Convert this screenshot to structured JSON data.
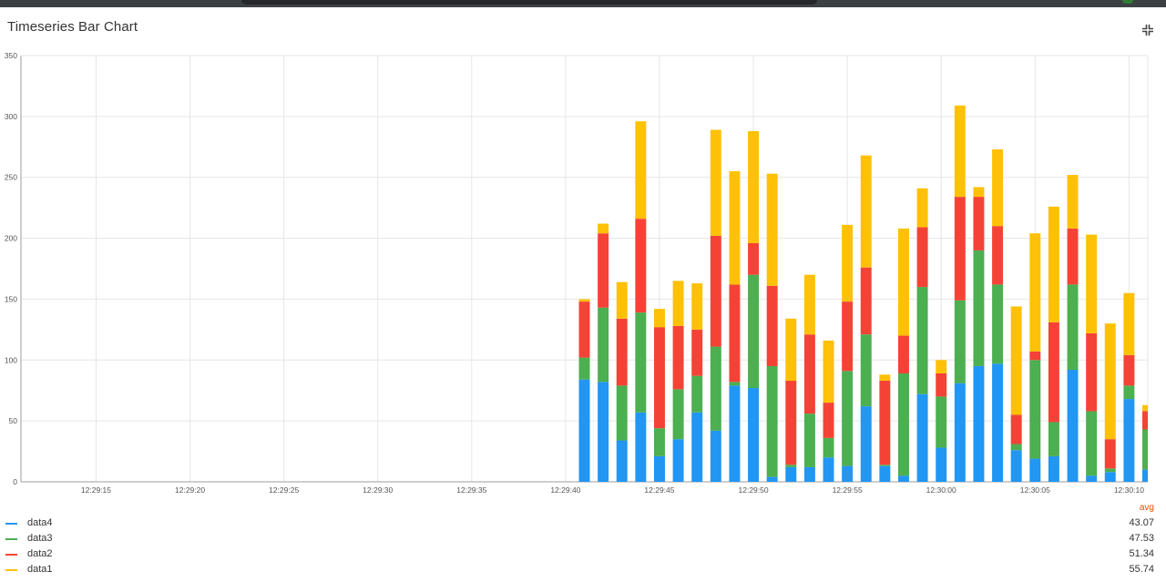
{
  "header": {
    "title": "Timeseries Bar Chart",
    "shrink_icon": "shrink-icon"
  },
  "legend": {
    "avg_label": "avg",
    "items": [
      {
        "name": "data4",
        "avg": "43.07",
        "color": "#2196f3"
      },
      {
        "name": "data3",
        "avg": "47.53",
        "color": "#4caf50"
      },
      {
        "name": "data2",
        "avg": "51.34",
        "color": "#f44336"
      },
      {
        "name": "data1",
        "avg": "55.74",
        "color": "#ffc107"
      }
    ]
  },
  "chart_data": {
    "type": "bar",
    "stacked": true,
    "grid": true,
    "ylim": [
      0,
      350
    ],
    "yticks": [
      0,
      50,
      100,
      150,
      200,
      250,
      300,
      350
    ],
    "xlim": [
      "12:29:11",
      "12:30:11"
    ],
    "xticks": [
      "12:29:15",
      "12:29:20",
      "12:29:25",
      "12:29:30",
      "12:29:35",
      "12:29:40",
      "12:29:45",
      "12:29:50",
      "12:29:55",
      "12:30:00",
      "12:30:05",
      "12:30:10"
    ],
    "x": [
      "12:29:41",
      "12:29:42",
      "12:29:43",
      "12:29:44",
      "12:29:45",
      "12:29:46",
      "12:29:47",
      "12:29:48",
      "12:29:49",
      "12:29:50",
      "12:29:51",
      "12:29:52",
      "12:29:53",
      "12:29:54",
      "12:29:55",
      "12:29:56",
      "12:29:57",
      "12:29:58",
      "12:29:59",
      "12:30:00",
      "12:30:01",
      "12:30:02",
      "12:30:03",
      "12:30:04",
      "12:30:05",
      "12:30:06",
      "12:30:07",
      "12:30:08",
      "12:30:09",
      "12:30:10",
      "12:30:11"
    ],
    "series": [
      {
        "name": "data4",
        "color": "#2196f3",
        "values": [
          84,
          82,
          34,
          57,
          21,
          35,
          57,
          42,
          79,
          77,
          4,
          12,
          12,
          20,
          13,
          62,
          13,
          5,
          72,
          28,
          81,
          95,
          97,
          26,
          19,
          21,
          92,
          5,
          8,
          68,
          10
        ]
      },
      {
        "name": "data3",
        "color": "#4caf50",
        "values": [
          18,
          61,
          45,
          82,
          23,
          41,
          30,
          69,
          3,
          93,
          91,
          2,
          44,
          16,
          78,
          59,
          1,
          84,
          88,
          42,
          68,
          95,
          65,
          5,
          81,
          28,
          70,
          53,
          3,
          11,
          33
        ]
      },
      {
        "name": "data2",
        "color": "#f44336",
        "values": [
          46,
          61,
          55,
          77,
          83,
          52,
          38,
          91,
          80,
          26,
          66,
          69,
          65,
          29,
          57,
          55,
          69,
          31,
          49,
          19,
          85,
          44,
          48,
          24,
          7,
          82,
          46,
          64,
          24,
          25,
          15
        ]
      },
      {
        "name": "data1",
        "color": "#ffc107",
        "values": [
          2,
          8,
          30,
          80,
          15,
          37,
          38,
          87,
          93,
          92,
          92,
          51,
          49,
          51,
          63,
          92,
          5,
          88,
          32,
          11,
          75,
          8,
          63,
          89,
          97,
          95,
          44,
          81,
          95,
          51,
          5
        ]
      }
    ]
  }
}
